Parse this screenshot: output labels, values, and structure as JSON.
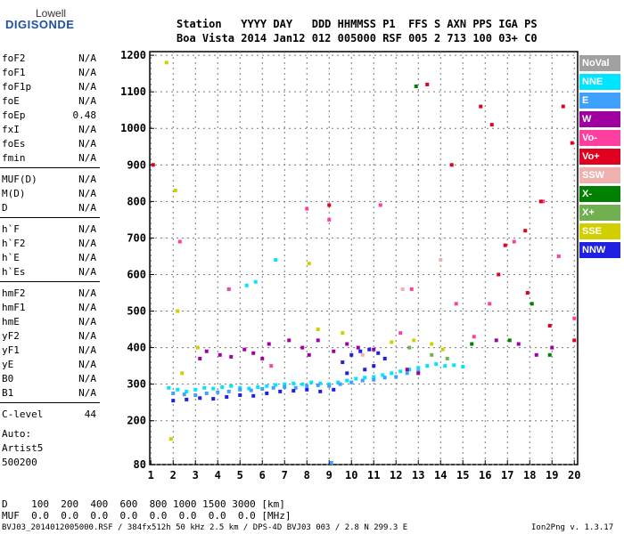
{
  "logo": {
    "line1": "Lowell",
    "line2": "DIGISONDE"
  },
  "header": {
    "row1": "Station   YYYY DAY   DDD HHMMSS P1  FFS S AXN PPS IGA PS",
    "row2": "Boa Vista 2014 Jan12 012 005000 RSF 005 2 713 100 03+ C0"
  },
  "params": [
    {
      "group": [
        {
          "label": "foF2",
          "value": "N/A"
        },
        {
          "label": "foF1",
          "value": "N/A"
        },
        {
          "label": "foF1p",
          "value": "N/A"
        },
        {
          "label": "foE",
          "value": "N/A"
        },
        {
          "label": "foEp",
          "value": "0.48"
        },
        {
          "label": "fxI",
          "value": "N/A"
        },
        {
          "label": "foEs",
          "value": "N/A"
        },
        {
          "label": "fmin",
          "value": "N/A"
        }
      ]
    },
    {
      "group": [
        {
          "label": "MUF(D)",
          "value": "N/A"
        },
        {
          "label": "M(D)",
          "value": "N/A"
        },
        {
          "label": "D",
          "value": "N/A"
        }
      ]
    },
    {
      "group": [
        {
          "label": "h`F",
          "value": "N/A"
        },
        {
          "label": "h`F2",
          "value": "N/A"
        },
        {
          "label": "h`E",
          "value": "N/A"
        },
        {
          "label": "h`Es",
          "value": "N/A"
        }
      ]
    },
    {
      "group": [
        {
          "label": "hmF2",
          "value": "N/A"
        },
        {
          "label": "hmF1",
          "value": "N/A"
        },
        {
          "label": "hmE",
          "value": "N/A"
        },
        {
          "label": "yF2",
          "value": "N/A"
        },
        {
          "label": "yF1",
          "value": "N/A"
        },
        {
          "label": "yE",
          "value": "N/A"
        },
        {
          "label": "B0",
          "value": "N/A"
        },
        {
          "label": "B1",
          "value": "N/A"
        }
      ]
    },
    {
      "group": [
        {
          "label": "C-level",
          "value": "44"
        }
      ]
    }
  ],
  "auto": {
    "line1": "Auto:",
    "line2": "Artist5",
    "line3": "500200"
  },
  "legend": [
    {
      "label": "NoVal",
      "color": "#a0a0a0"
    },
    {
      "label": "NNE",
      "color": "#00e5ff"
    },
    {
      "label": "E",
      "color": "#3fa0ff"
    },
    {
      "label": "W",
      "color": "#a000a0"
    },
    {
      "label": "Vo-",
      "color": "#ff3fa0"
    },
    {
      "label": "Vo+",
      "color": "#e00020"
    },
    {
      "label": "SSW",
      "color": "#f0b0b0"
    },
    {
      "label": "X-",
      "color": "#008000"
    },
    {
      "label": "X+",
      "color": "#70b050"
    },
    {
      "label": "SSE",
      "color": "#d0d000"
    },
    {
      "label": "NNW",
      "color": "#2020e0"
    }
  ],
  "footer": {
    "row_d": "D    100  200  400  600  800 1000 1500 3000 [km]",
    "row_muf": "MUF  0.0  0.0  0.0  0.0  0.0  0.0  0.0  0.0 [MHz]",
    "file_info": "BVJ03_2014012005000.RSF / 384fx512h 50 kHz 2.5 km / DPS-4D BVJ03 003 / 2.8 N 299.3 E",
    "version": "Ion2Png v. 1.3.17"
  },
  "chart_data": {
    "type": "scatter",
    "title": "",
    "xlabel": "",
    "ylabel": "",
    "xlim": [
      0.95,
      20.15
    ],
    "ylim": [
      80,
      1210
    ],
    "x_ticks": [
      "1",
      "2",
      "3",
      "4",
      "5",
      "6",
      "7",
      "8",
      "9",
      "10",
      "11",
      "12",
      "13",
      "14",
      "15",
      "16",
      "17",
      "18",
      "19",
      "20"
    ],
    "y_ticks": [
      "80",
      "200",
      "300",
      "400",
      "500",
      "600",
      "700",
      "800",
      "900",
      "1000",
      "1100",
      "1200"
    ],
    "grid": true,
    "legend_position": "right",
    "series": [
      {
        "name": "NNE",
        "color": "#00e5ff",
        "points": [
          [
            1.8,
            290
          ],
          [
            2.2,
            285
          ],
          [
            2.6,
            280
          ],
          [
            3.0,
            285
          ],
          [
            3.4,
            290
          ],
          [
            3.8,
            288
          ],
          [
            4.2,
            292
          ],
          [
            4.6,
            295
          ],
          [
            5.0,
            290
          ],
          [
            5.4,
            288
          ],
          [
            5.8,
            292
          ],
          [
            6.2,
            295
          ],
          [
            6.6,
            298
          ],
          [
            7.0,
            300
          ],
          [
            7.4,
            302
          ],
          [
            7.8,
            300
          ],
          [
            8.2,
            305
          ],
          [
            8.6,
            302
          ],
          [
            9.0,
            300
          ],
          [
            9.4,
            305
          ],
          [
            9.8,
            310
          ],
          [
            10.2,
            315
          ],
          [
            10.6,
            318
          ],
          [
            11.0,
            320
          ],
          [
            11.4,
            325
          ],
          [
            11.8,
            330
          ],
          [
            12.2,
            335
          ],
          [
            12.6,
            340
          ],
          [
            13.0,
            345
          ],
          [
            13.4,
            350
          ],
          [
            13.8,
            355
          ],
          [
            14.2,
            350
          ],
          [
            14.6,
            352
          ],
          [
            15.0,
            348
          ],
          [
            5.3,
            570
          ],
          [
            5.7,
            580
          ],
          [
            6.6,
            640
          ],
          [
            4.5,
            560
          ]
        ]
      },
      {
        "name": "E",
        "color": "#3fa0ff",
        "points": [
          [
            2.0,
            275
          ],
          [
            2.5,
            272
          ],
          [
            3.0,
            270
          ],
          [
            3.5,
            275
          ],
          [
            4.0,
            278
          ],
          [
            4.5,
            280
          ],
          [
            5.0,
            285
          ],
          [
            5.5,
            283
          ],
          [
            6.0,
            287
          ],
          [
            6.5,
            290
          ],
          [
            7.0,
            292
          ],
          [
            7.5,
            290
          ],
          [
            8.0,
            295
          ],
          [
            8.5,
            297
          ],
          [
            9.0,
            295
          ],
          [
            9.5,
            300
          ],
          [
            10.0,
            305
          ],
          [
            10.5,
            310
          ],
          [
            11.0,
            312
          ],
          [
            11.5,
            318
          ],
          [
            12.0,
            320
          ],
          [
            12.5,
            330
          ],
          [
            13.0,
            335
          ],
          [
            9.1,
            85
          ]
        ]
      },
      {
        "name": "W",
        "color": "#a000a0",
        "points": [
          [
            3.2,
            370
          ],
          [
            3.5,
            390
          ],
          [
            4.1,
            380
          ],
          [
            4.6,
            375
          ],
          [
            5.2,
            395
          ],
          [
            5.6,
            385
          ],
          [
            6.0,
            370
          ],
          [
            6.3,
            410
          ],
          [
            7.2,
            420
          ],
          [
            7.8,
            400
          ],
          [
            8.1,
            380
          ],
          [
            8.5,
            420
          ],
          [
            9.2,
            390
          ],
          [
            9.8,
            410
          ],
          [
            10.3,
            400
          ],
          [
            11.0,
            395
          ],
          [
            12.5,
            340
          ],
          [
            13.0,
            330
          ],
          [
            16.5,
            420
          ],
          [
            17.5,
            410
          ],
          [
            18.3,
            380
          ],
          [
            19.0,
            400
          ]
        ]
      },
      {
        "name": "Vo-",
        "color": "#ff3fa0",
        "points": [
          [
            2.3,
            690
          ],
          [
            4.5,
            560
          ],
          [
            6.4,
            350
          ],
          [
            8.0,
            780
          ],
          [
            9.0,
            750
          ],
          [
            11.3,
            790
          ],
          [
            12.2,
            440
          ],
          [
            12.7,
            560
          ],
          [
            14.7,
            520
          ],
          [
            15.5,
            430
          ],
          [
            16.2,
            520
          ],
          [
            17.3,
            690
          ],
          [
            18.6,
            800
          ],
          [
            19.3,
            650
          ],
          [
            20.0,
            480
          ]
        ]
      },
      {
        "name": "Vo+",
        "color": "#e00020",
        "points": [
          [
            1.1,
            900
          ],
          [
            9.0,
            790
          ],
          [
            13.4,
            1120
          ],
          [
            14.5,
            900
          ],
          [
            15.8,
            1060
          ],
          [
            16.3,
            1010
          ],
          [
            16.9,
            680
          ],
          [
            17.8,
            720
          ],
          [
            18.5,
            800
          ],
          [
            19.5,
            1060
          ],
          [
            19.9,
            960
          ],
          [
            20.0,
            420
          ],
          [
            18.9,
            460
          ],
          [
            17.9,
            550
          ],
          [
            16.6,
            600
          ]
        ]
      },
      {
        "name": "SSW",
        "color": "#f0b0b0",
        "points": [
          [
            10.5,
            380
          ],
          [
            12.3,
            560
          ],
          [
            14.0,
            640
          ]
        ]
      },
      {
        "name": "X-",
        "color": "#008000",
        "points": [
          [
            12.9,
            1115
          ],
          [
            15.4,
            410
          ],
          [
            17.1,
            420
          ],
          [
            18.1,
            520
          ],
          [
            18.9,
            380
          ]
        ]
      },
      {
        "name": "X+",
        "color": "#70b050",
        "points": [
          [
            12.6,
            400
          ],
          [
            13.6,
            380
          ],
          [
            14.3,
            370
          ]
        ]
      },
      {
        "name": "SSE",
        "color": "#d0d000",
        "points": [
          [
            1.7,
            1180
          ],
          [
            2.1,
            830
          ],
          [
            2.2,
            500
          ],
          [
            2.4,
            330
          ],
          [
            3.1,
            400
          ],
          [
            8.1,
            630
          ],
          [
            8.5,
            450
          ],
          [
            9.6,
            440
          ],
          [
            11.8,
            415
          ],
          [
            12.8,
            420
          ],
          [
            13.6,
            410
          ],
          [
            14.1,
            395
          ],
          [
            1.9,
            150
          ]
        ]
      },
      {
        "name": "NNW",
        "color": "#2020e0",
        "points": [
          [
            2.0,
            255
          ],
          [
            2.6,
            258
          ],
          [
            3.2,
            262
          ],
          [
            3.8,
            260
          ],
          [
            4.4,
            265
          ],
          [
            5.0,
            270
          ],
          [
            5.6,
            268
          ],
          [
            6.2,
            275
          ],
          [
            6.8,
            280
          ],
          [
            7.4,
            282
          ],
          [
            8.0,
            285
          ],
          [
            8.6,
            280
          ],
          [
            9.2,
            285
          ],
          [
            9.6,
            360
          ],
          [
            10.0,
            380
          ],
          [
            10.4,
            390
          ],
          [
            10.8,
            395
          ],
          [
            11.2,
            385
          ],
          [
            11.5,
            370
          ],
          [
            9.8,
            330
          ],
          [
            10.6,
            340
          ],
          [
            11.0,
            350
          ]
        ]
      }
    ]
  }
}
